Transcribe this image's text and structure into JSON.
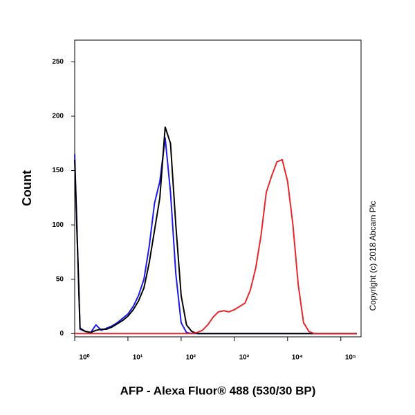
{
  "chart_data": {
    "type": "line",
    "x_label": "AFP - Alexa Fluor® 488 (530/30 BP)",
    "y_label": "Count",
    "annotation": "Copyright (c) 2018 Abcam Plc",
    "log_x": true,
    "xlim": [
      1,
      240000
    ],
    "ylim": [
      -3,
      270
    ],
    "xticks": [
      {
        "value": 1,
        "label": "10⁰"
      },
      {
        "value": 10,
        "label": "10¹"
      },
      {
        "value": 100,
        "label": "10²"
      },
      {
        "value": 1000,
        "label": "10³"
      },
      {
        "value": 10000,
        "label": "10⁴"
      },
      {
        "value": 100000,
        "label": "10⁵"
      }
    ],
    "yticks": [
      0,
      50,
      100,
      150,
      200,
      250
    ],
    "x": [
      1,
      1.26,
      1.58,
      2,
      2.51,
      3.16,
      3.98,
      5.01,
      6.31,
      7.94,
      10,
      12.6,
      15.8,
      20,
      25.1,
      31.6,
      39.8,
      50.1,
      63.1,
      79.4,
      100,
      126,
      158,
      200,
      251,
      316,
      398,
      501,
      631,
      794,
      1000,
      1259,
      1585,
      1995,
      2512,
      3162,
      3981,
      5012,
      6310,
      7943,
      10000,
      12589,
      15849,
      19953,
      25119,
      31623,
      39811,
      50119,
      63096,
      79433,
      100000,
      125893,
      158489,
      199526
    ],
    "series": [
      {
        "color": "#1a1aee",
        "values": [
          165,
          4,
          2,
          1,
          8,
          3,
          5,
          7,
          10,
          14,
          18,
          25,
          35,
          50,
          80,
          120,
          140,
          180,
          130,
          55,
          10,
          1,
          0,
          0,
          0,
          0,
          0,
          0,
          0,
          0,
          0,
          0,
          0,
          0,
          0,
          0,
          0,
          0,
          0,
          0,
          0,
          0,
          0,
          0,
          0,
          0,
          0,
          0,
          0,
          0,
          0,
          0,
          0,
          0
        ]
      },
      {
        "color": "#000000",
        "values": [
          160,
          5,
          2,
          1,
          3,
          4,
          4,
          6,
          9,
          12,
          16,
          22,
          30,
          42,
          65,
          95,
          125,
          190,
          175,
          100,
          35,
          8,
          2,
          0,
          0,
          0,
          0,
          0,
          0,
          0,
          0,
          0,
          0,
          0,
          0,
          0,
          0,
          0,
          0,
          0,
          0,
          0,
          0,
          0,
          0,
          0,
          0,
          0,
          0,
          0,
          0,
          0,
          0,
          0
        ]
      },
      {
        "color": "#e8262a",
        "values": [
          0,
          0,
          0,
          0,
          0,
          0,
          0,
          0,
          0,
          0,
          0,
          0,
          0,
          0,
          0,
          0,
          0,
          0,
          0,
          0,
          0,
          0,
          0,
          1,
          3,
          8,
          15,
          20,
          21,
          20,
          22,
          25,
          28,
          40,
          60,
          90,
          130,
          145,
          158,
          160,
          140,
          100,
          45,
          10,
          2,
          0,
          0,
          0,
          0,
          0,
          0,
          0,
          0,
          0
        ]
      }
    ]
  }
}
